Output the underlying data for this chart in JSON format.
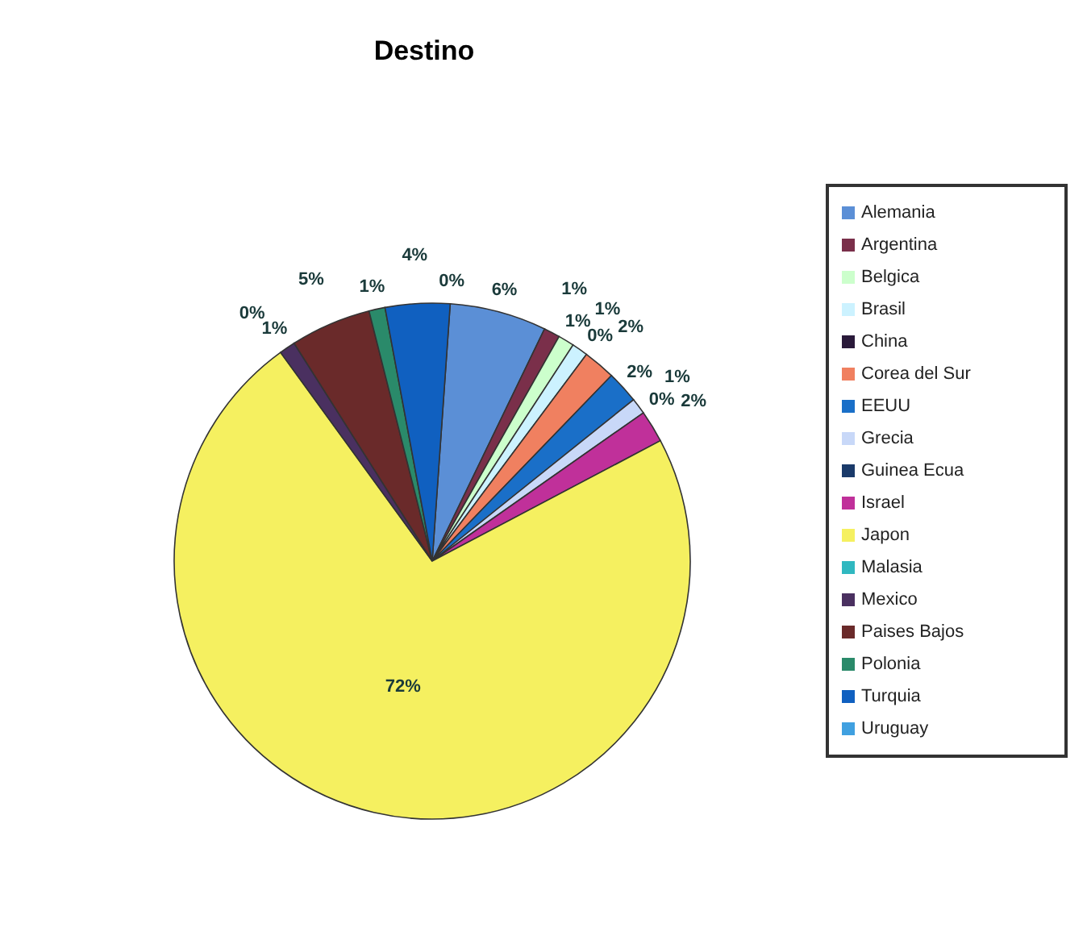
{
  "chart_data": {
    "type": "pie",
    "title": "Destino",
    "categories": [
      "Alemania",
      "Argentina",
      "Belgica",
      "Brasil",
      "China",
      "Corea del Sur",
      "EEUU",
      "Grecia",
      "Guinea Ecua",
      "Israel",
      "Japon",
      "Malasia",
      "Mexico",
      "Paises Bajos",
      "Polonia",
      "Turquia",
      "Uruguay"
    ],
    "values": [
      6,
      1,
      1,
      1,
      0,
      2,
      2,
      1,
      0,
      2,
      72,
      0,
      1,
      5,
      1,
      4,
      0
    ],
    "value_labels": [
      "6%",
      "1%",
      "1%",
      "1%",
      "0%",
      "2%",
      "2%",
      "1%",
      "0%",
      "2%",
      "72%",
      "0%",
      "1%",
      "5%",
      "1%",
      "4%",
      "0%"
    ],
    "colors": [
      "#5b8fd6",
      "#7a2f4a",
      "#ccffcc",
      "#ccf2ff",
      "#2a1a3a",
      "#f08060",
      "#1a6fc8",
      "#c8d8f8",
      "#1a3a6a",
      "#c0309a",
      "#f5f060",
      "#30b8c0",
      "#4a3060",
      "#6a2a2a",
      "#2a8a6a",
      "#1060c0",
      "#40a0e0"
    ],
    "legend": "right"
  }
}
